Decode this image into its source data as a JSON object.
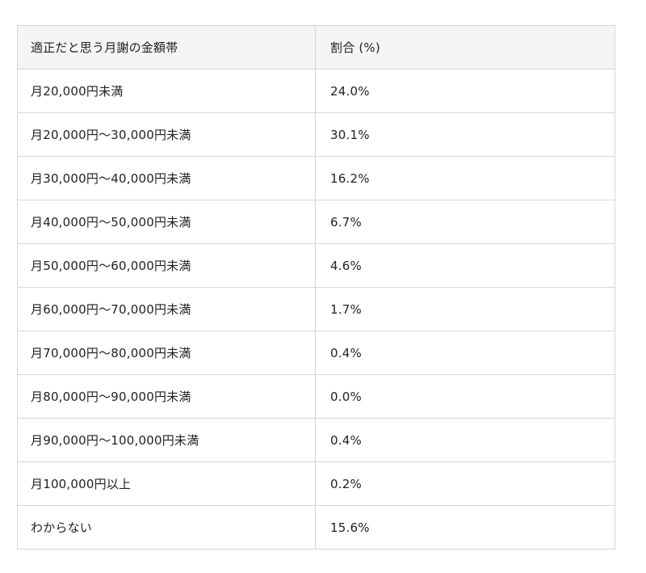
{
  "colors": {
    "page_background": "#ffffff",
    "header_background": "#f5f5f6",
    "border": "#d6d6d6",
    "text": "#222222"
  },
  "chart_data": {
    "type": "table",
    "title": "",
    "columns": [
      "適正だと思う月謝の金額帯",
      "割合 (%)"
    ],
    "rows": [
      [
        "月20,000円未満",
        "24.0%"
      ],
      [
        "月20,000円〜30,000円未満",
        "30.1%"
      ],
      [
        "月30,000円〜40,000円未満",
        "16.2%"
      ],
      [
        "月40,000円〜50,000円未満",
        "6.7%"
      ],
      [
        "月50,000円〜60,000円未満",
        "4.6%"
      ],
      [
        "月60,000円〜70,000円未満",
        "1.7%"
      ],
      [
        "月70,000円〜80,000円未満",
        "0.4%"
      ],
      [
        "月80,000円〜90,000円未満",
        "0.0%"
      ],
      [
        "月90,000円〜100,000円未満",
        "0.4%"
      ],
      [
        "月100,000円以上",
        "0.2%"
      ],
      [
        "わからない",
        "15.6%"
      ]
    ],
    "values_percent": [
      24.0,
      30.1,
      16.2,
      6.7,
      4.6,
      1.7,
      0.4,
      0.0,
      0.4,
      0.2,
      15.6
    ]
  }
}
